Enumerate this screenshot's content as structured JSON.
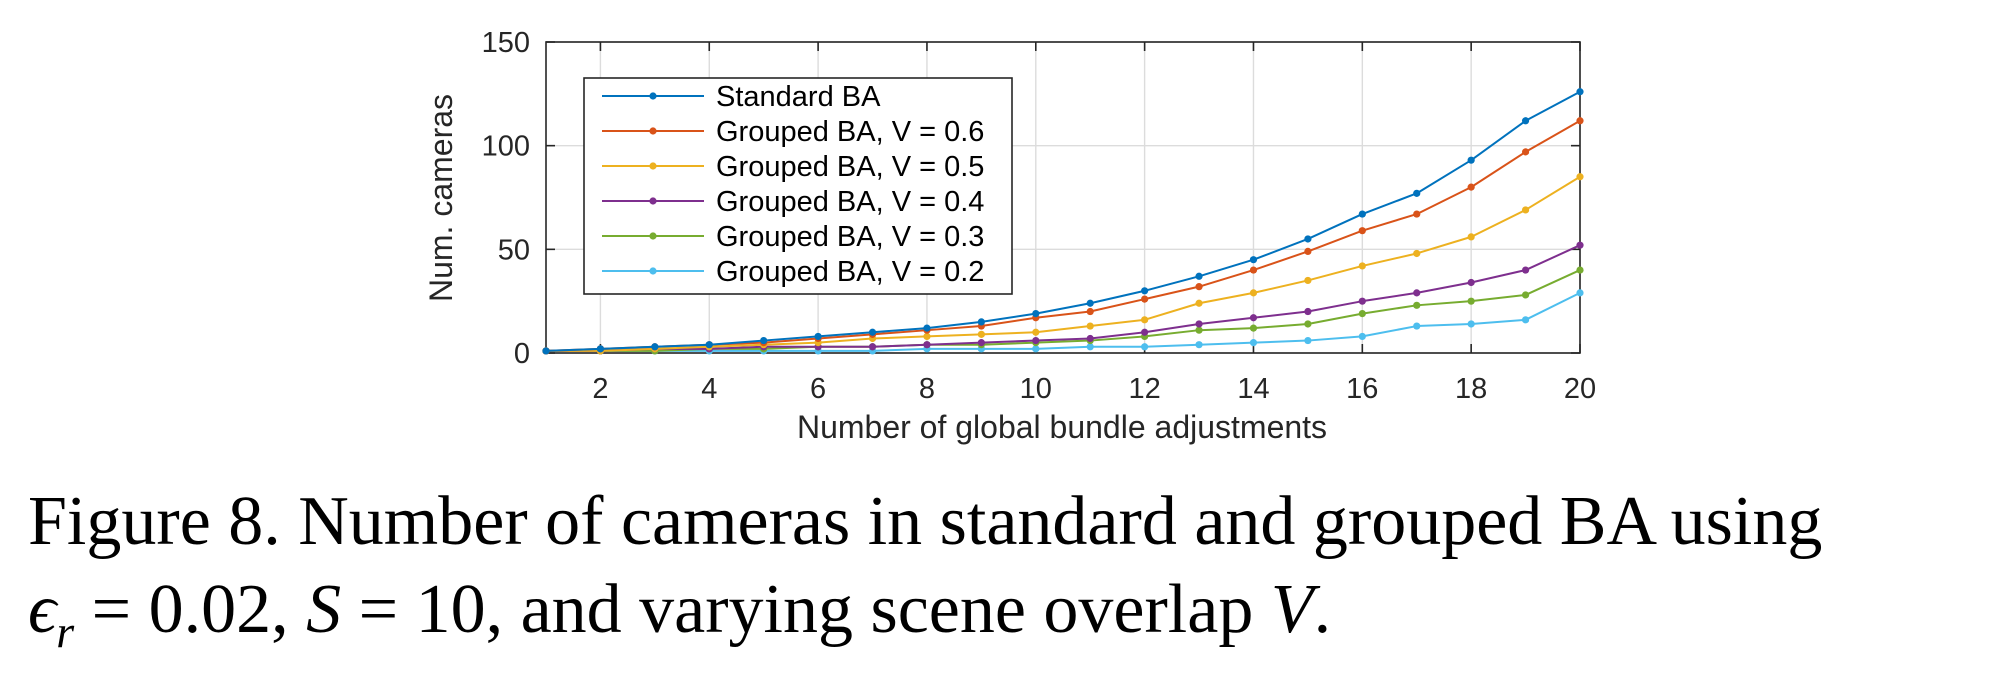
{
  "chart_data": {
    "type": "line",
    "xlabel": "Number of global bundle adjustments",
    "ylabel": "Num. cameras",
    "xlim": [
      1,
      20
    ],
    "ylim": [
      0,
      150
    ],
    "x_ticks": [
      2,
      4,
      6,
      8,
      10,
      12,
      14,
      16,
      18,
      20
    ],
    "y_ticks": [
      0,
      50,
      100,
      150
    ],
    "grid": true,
    "legend_position": "top-left",
    "x": [
      1,
      2,
      3,
      4,
      5,
      6,
      7,
      8,
      9,
      10,
      11,
      12,
      13,
      14,
      15,
      16,
      17,
      18,
      19,
      20
    ],
    "series": [
      {
        "name": "Standard BA",
        "color": "#0072BD",
        "values": [
          1,
          2,
          3,
          4,
          6,
          8,
          10,
          12,
          15,
          19,
          24,
          30,
          37,
          45,
          55,
          67,
          77,
          93,
          112,
          126
        ]
      },
      {
        "name": "Grouped BA, V = 0.6",
        "color": "#D95319",
        "values": [
          1,
          2,
          3,
          4,
          5,
          7,
          9,
          11,
          13,
          17,
          20,
          26,
          32,
          40,
          49,
          59,
          67,
          80,
          97,
          112
        ]
      },
      {
        "name": "Grouped BA, V = 0.5",
        "color": "#EDB120",
        "values": [
          1,
          1,
          2,
          3,
          4,
          5,
          7,
          8,
          9,
          10,
          13,
          16,
          24,
          29,
          35,
          42,
          48,
          56,
          69,
          85
        ]
      },
      {
        "name": "Grouped BA, V = 0.4",
        "color": "#7E2F8E",
        "values": [
          1,
          1,
          2,
          2,
          3,
          3,
          3,
          4,
          5,
          6,
          7,
          10,
          14,
          17,
          20,
          25,
          29,
          34,
          40,
          52
        ]
      },
      {
        "name": "Grouped BA, V = 0.3",
        "color": "#77AC30",
        "values": [
          1,
          1,
          1,
          2,
          2,
          3,
          3,
          4,
          4,
          5,
          6,
          8,
          11,
          12,
          14,
          19,
          23,
          25,
          28,
          40
        ]
      },
      {
        "name": "Grouped BA, V = 0.2",
        "color": "#4DBEEE",
        "values": [
          1,
          1,
          1,
          1,
          1,
          1,
          1,
          2,
          2,
          2,
          3,
          3,
          4,
          5,
          6,
          8,
          13,
          14,
          16,
          29
        ]
      }
    ]
  },
  "caption": {
    "line1": "Figure 8. Number of cameras in standard and grouped BA using",
    "eps": "ϵ",
    "eps_sub": "r",
    "eq1": " = 0.02, ",
    "S": "S",
    "eq2": " = 10, and varying scene overlap ",
    "V": "V",
    "end": "."
  }
}
